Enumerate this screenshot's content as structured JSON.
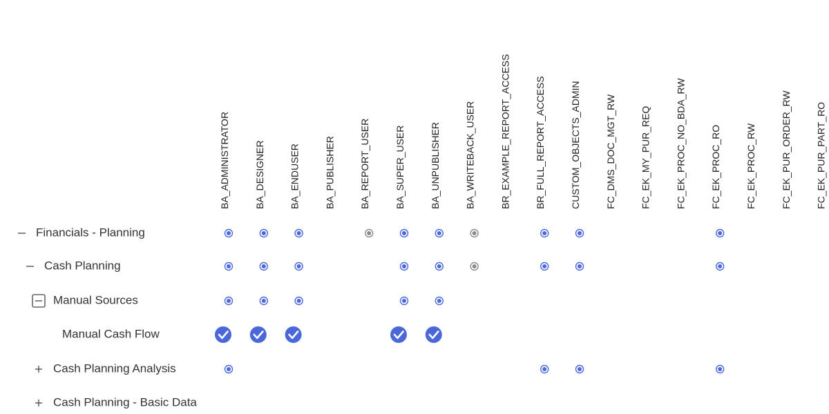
{
  "columns": [
    "BA_ADMINISTRATOR",
    "BA_DESIGNER",
    "BA_ENDUSER",
    "BA_PUBLISHER",
    "BA_REPORT_USER",
    "BA_SUPER_USER",
    "BA_UNPUBLISHER",
    "BA_WRITEBACK_USER",
    "BR_EXAMPLE_REPORT_ACCESS",
    "BR_FULL_REPORT_ACCESS",
    "CUSTOM_OBJECTS_ADMIN",
    "FC_DMS_DOC_MGT_RW",
    "FC_EK_MY_PUR_REQ",
    "FC_EK_PROC_NO_BDA_RW",
    "FC_EK_PROC_RO",
    "FC_EK_PROC_RW",
    "FC_EK_PUR_ORDER_RW",
    "FC_EK_PUR_PART_RO"
  ],
  "rows": [
    {
      "label": "Financials - Planning"
    },
    {
      "label": "Cash Planning"
    },
    {
      "label": "Manual Sources"
    },
    {
      "label": "Manual Cash Flow"
    },
    {
      "label": "Cash Planning Analysis"
    },
    {
      "label": "Cash Planning - Basic Data"
    }
  ]
}
